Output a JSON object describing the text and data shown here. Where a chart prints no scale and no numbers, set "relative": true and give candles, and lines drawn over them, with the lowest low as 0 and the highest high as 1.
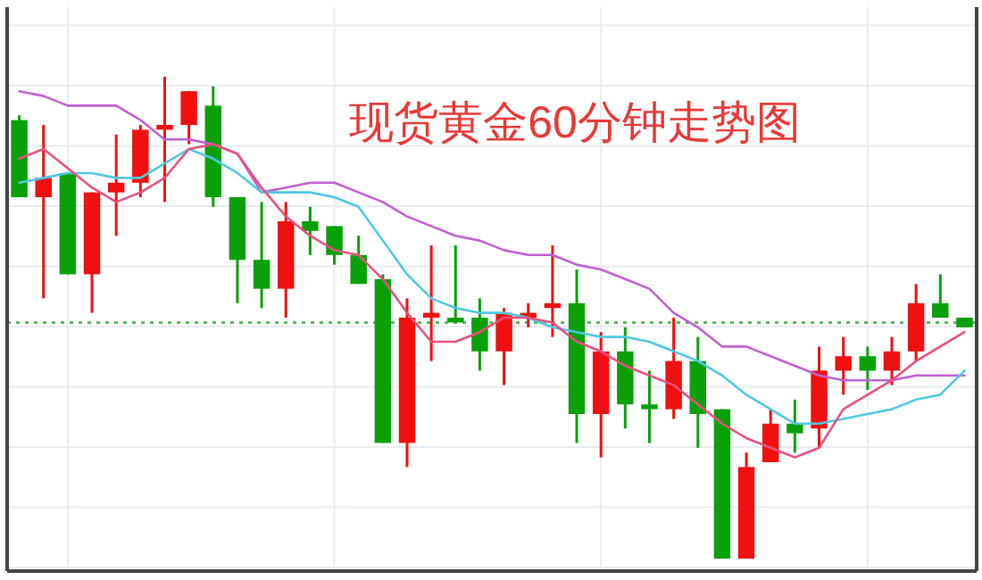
{
  "chart_data": {
    "type": "candlestick",
    "title": "现货黄金60分钟走势图",
    "relative": true,
    "grid": true,
    "categories": [
      null,
      null,
      null,
      null,
      null,
      null,
      null,
      null,
      null,
      null,
      null,
      null,
      null,
      null,
      null,
      null,
      null,
      null,
      null,
      null,
      null,
      null,
      null,
      null,
      null,
      null,
      null,
      null,
      null,
      null,
      null,
      null,
      null,
      null,
      null,
      null,
      null,
      null,
      null,
      null
    ],
    "ohlc": [
      [
        0.91,
        0.92,
        0.75,
        0.75
      ],
      [
        0.75,
        0.9,
        0.54,
        0.79
      ],
      [
        0.8,
        0.8,
        0.59,
        0.59
      ],
      [
        0.59,
        0.76,
        0.51,
        0.76
      ],
      [
        0.76,
        0.88,
        0.67,
        0.78
      ],
      [
        0.78,
        0.9,
        0.75,
        0.89
      ],
      [
        0.89,
        1.0,
        0.74,
        0.9
      ],
      [
        0.9,
        0.97,
        0.86,
        0.97
      ],
      [
        0.94,
        0.98,
        0.73,
        0.75
      ],
      [
        0.75,
        0.75,
        0.53,
        0.62
      ],
      [
        0.62,
        0.74,
        0.52,
        0.56
      ],
      [
        0.56,
        0.74,
        0.5,
        0.7
      ],
      [
        0.7,
        0.73,
        0.63,
        0.68
      ],
      [
        0.69,
        0.69,
        0.61,
        0.63
      ],
      [
        0.63,
        0.67,
        0.57,
        0.57
      ],
      [
        0.58,
        0.59,
        0.24,
        0.24
      ],
      [
        0.24,
        0.54,
        0.19,
        0.5
      ],
      [
        0.5,
        0.65,
        0.41,
        0.51
      ],
      [
        0.5,
        0.65,
        0.49,
        0.49
      ],
      [
        0.5,
        0.54,
        0.39,
        0.43
      ],
      [
        0.43,
        0.52,
        0.36,
        0.51
      ],
      [
        0.5,
        0.53,
        0.48,
        0.51
      ],
      [
        0.52,
        0.65,
        0.46,
        0.53
      ],
      [
        0.53,
        0.6,
        0.24,
        0.3
      ],
      [
        0.3,
        0.47,
        0.21,
        0.43
      ],
      [
        0.43,
        0.48,
        0.27,
        0.32
      ],
      [
        0.32,
        0.39,
        0.24,
        0.31
      ],
      [
        0.31,
        0.5,
        0.29,
        0.41
      ],
      [
        0.41,
        0.46,
        0.23,
        0.3
      ],
      [
        0.31,
        0.31,
        0.0,
        0.0
      ],
      [
        0.0,
        0.22,
        0.0,
        0.19
      ],
      [
        0.2,
        0.31,
        0.2,
        0.28
      ],
      [
        0.28,
        0.33,
        0.22,
        0.26
      ],
      [
        0.27,
        0.44,
        0.23,
        0.39
      ],
      [
        0.39,
        0.46,
        0.34,
        0.42
      ],
      [
        0.42,
        0.44,
        0.35,
        0.39
      ],
      [
        0.39,
        0.46,
        0.36,
        0.43
      ],
      [
        0.43,
        0.57,
        0.41,
        0.53
      ],
      [
        0.53,
        0.59,
        0.5,
        0.5
      ],
      [
        0.5,
        0.5,
        0.48,
        0.48
      ]
    ],
    "colors": [
      "#0aa00a",
      "#f01010",
      "#0aa00a",
      "#f01010",
      "#f01010",
      "#f01010",
      "#f01010",
      "#f01010",
      "#0aa00a",
      "#0aa00a",
      "#0aa00a",
      "#f01010",
      "#0aa00a",
      "#0aa00a",
      "#0aa00a",
      "#0aa00a",
      "#f01010",
      "#f01010",
      "#0aa00a",
      "#0aa00a",
      "#f01010",
      "#f01010",
      "#f01010",
      "#0aa00a",
      "#f01010",
      "#0aa00a",
      "#0aa00a",
      "#f01010",
      "#0aa00a",
      "#0aa00a",
      "#f01010",
      "#f01010",
      "#0aa00a",
      "#f01010",
      "#f01010",
      "#0aa00a",
      "#f01010",
      "#f01010",
      "#0aa00a",
      "#0aa00a"
    ],
    "series": [
      {
        "type": "line",
        "color": "#c060d0",
        "values": [
          0.97,
          0.96,
          0.94,
          0.94,
          0.94,
          0.91,
          0.87,
          0.87,
          0.86,
          0.84,
          0.76,
          0.77,
          0.78,
          0.78,
          0.76,
          0.74,
          0.71,
          0.69,
          0.67,
          0.66,
          0.64,
          0.63,
          0.63,
          0.61,
          0.6,
          0.58,
          0.56,
          0.51,
          0.48,
          0.44,
          0.44,
          0.42,
          0.4,
          0.38,
          0.37,
          0.37,
          0.37,
          0.38,
          0.38,
          0.38
        ]
      },
      {
        "type": "line",
        "color": "#50c8e0",
        "values": [
          0.78,
          0.79,
          0.8,
          0.8,
          0.79,
          0.79,
          0.82,
          0.85,
          0.83,
          0.8,
          0.76,
          0.76,
          0.76,
          0.75,
          0.73,
          0.66,
          0.59,
          0.54,
          0.52,
          0.51,
          0.51,
          0.5,
          0.48,
          0.47,
          0.46,
          0.46,
          0.45,
          0.43,
          0.41,
          0.38,
          0.34,
          0.31,
          0.28,
          0.28,
          0.29,
          0.3,
          0.31,
          0.33,
          0.34,
          0.39
        ]
      },
      {
        "type": "line",
        "color": "#e85080",
        "values": [
          0.83,
          0.85,
          0.81,
          0.77,
          0.74,
          0.76,
          0.79,
          0.85,
          0.86,
          0.84,
          0.77,
          0.71,
          0.67,
          0.64,
          0.63,
          0.58,
          0.51,
          0.45,
          0.45,
          0.47,
          0.5,
          0.5,
          0.49,
          0.45,
          0.43,
          0.4,
          0.38,
          0.36,
          0.32,
          0.28,
          0.25,
          0.23,
          0.21,
          0.23,
          0.31,
          0.34,
          0.37,
          0.41,
          0.44,
          0.47
        ]
      }
    ],
    "ref_lines": [
      {
        "axis": "y",
        "value": 0.49,
        "color": "#60b860",
        "line_style": "dotted"
      }
    ]
  }
}
